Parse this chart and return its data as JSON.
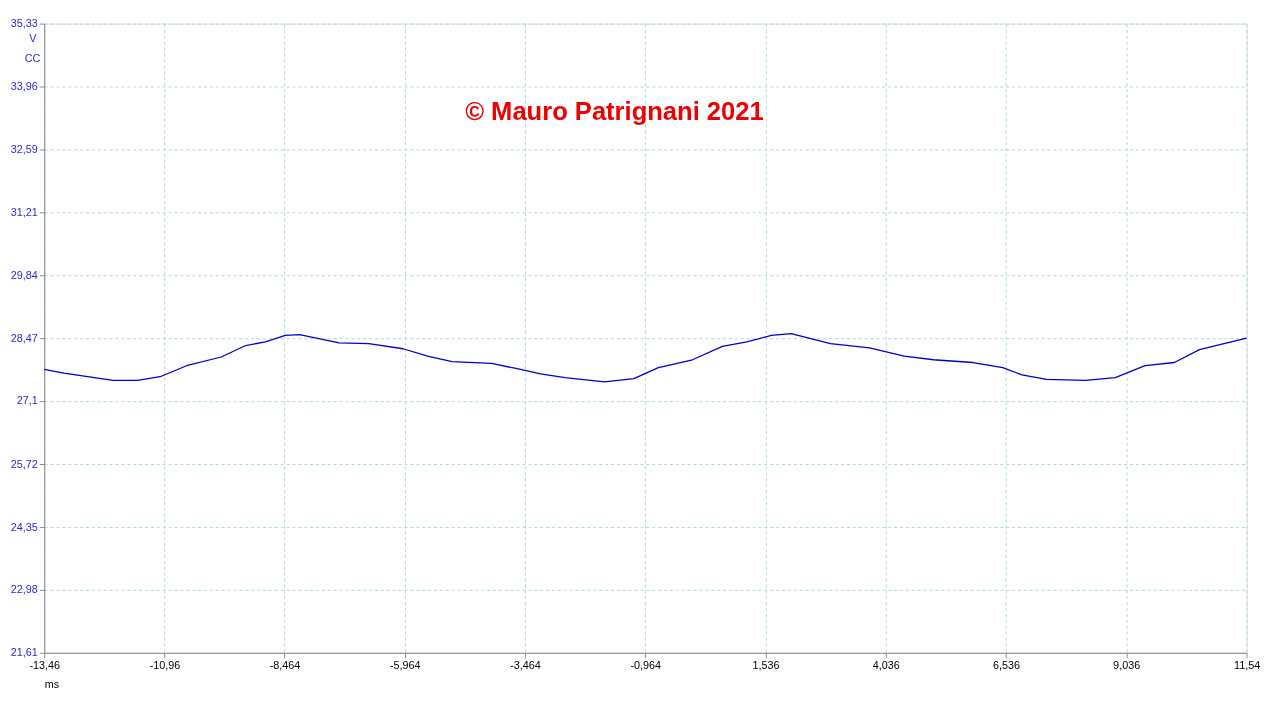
{
  "chart_data": {
    "type": "line",
    "xlabel": "ms",
    "ylabel": "V",
    "annotations": [
      "CC",
      "© Mauro Patrignani 2021"
    ],
    "x": [
      -13.46,
      -13.05,
      -12.03,
      -11.52,
      -11.05,
      -10.5,
      -9.78,
      -9.27,
      -8.86,
      -8.45,
      -8.15,
      -7.33,
      -6.71,
      -6.0,
      -5.49,
      -4.98,
      -4.16,
      -3.65,
      -3.14,
      -2.63,
      -1.81,
      -1.2,
      -0.69,
      0.02,
      0.64,
      1.15,
      1.66,
      2.07,
      2.89,
      3.7,
      4.42,
      5.03,
      5.85,
      6.47,
      6.87,
      7.38,
      8.2,
      8.81,
      9.43,
      10.04,
      10.56,
      11.07,
      11.54
    ],
    "series": [
      {
        "color": "#0000cc",
        "values": [
          27.79,
          27.71,
          27.55,
          27.55,
          27.63,
          27.87,
          28.06,
          28.31,
          28.39,
          28.53,
          28.55,
          28.37,
          28.35,
          28.24,
          28.08,
          27.96,
          27.92,
          27.81,
          27.69,
          27.61,
          27.52,
          27.59,
          27.83,
          28.0,
          28.29,
          28.39,
          28.53,
          28.57,
          28.35,
          28.26,
          28.08,
          28.0,
          27.94,
          27.83,
          27.67,
          27.57,
          27.55,
          27.61,
          27.87,
          27.94,
          28.22,
          28.35,
          28.47
        ]
      }
    ],
    "xlim": [
      -13.46,
      11.54
    ],
    "xticks": [
      {
        "value": -13.46,
        "label": "-13,46"
      },
      {
        "value": -10.96,
        "label": "-10,96"
      },
      {
        "value": -8.464,
        "label": "-8,464"
      },
      {
        "value": -5.964,
        "label": "-5,964"
      },
      {
        "value": -3.464,
        "label": "-3,464"
      },
      {
        "value": -0.964,
        "label": "-0,964"
      },
      {
        "value": 1.536,
        "label": "1,536"
      },
      {
        "value": 4.036,
        "label": "4,036"
      },
      {
        "value": 6.536,
        "label": "6,536"
      },
      {
        "value": 9.036,
        "label": "9,036"
      },
      {
        "value": 11.54,
        "label": "11,54"
      }
    ],
    "ylim": [
      21.61,
      35.33
    ],
    "yticks": [
      {
        "value": 21.61,
        "label": "21,61"
      },
      {
        "value": 22.98,
        "label": "22,98"
      },
      {
        "value": 24.35,
        "label": "24,35"
      },
      {
        "value": 25.72,
        "label": "25,72"
      },
      {
        "value": 27.1,
        "label": "27,1"
      },
      {
        "value": 28.47,
        "label": "28,47"
      },
      {
        "value": 29.84,
        "label": "29,84"
      },
      {
        "value": 31.21,
        "label": "31,21"
      },
      {
        "value": 32.59,
        "label": "32,59"
      },
      {
        "value": 33.96,
        "label": "33,96"
      },
      {
        "value": 35.33,
        "label": "35,33"
      }
    ],
    "grid": true,
    "line_style": "solid",
    "marker": "none"
  }
}
